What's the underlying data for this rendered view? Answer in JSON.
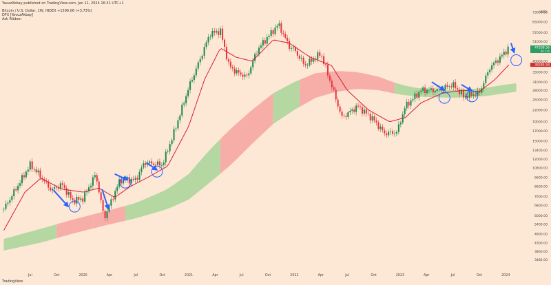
{
  "header": {
    "publish_line": "YavuzAkbay published on TradingView.com, Jan 11, 2024 16:31 UTC+1",
    "symbol_line": "Bitcoin / U.S. Dollar, 1W, INDEX  +1596.06 (+3.73%)",
    "indicator_1": "DFX [YavuzAkbay]",
    "indicator_2": "Ask Ribbon"
  },
  "currency": "USD",
  "footer_logo": "TradingView",
  "colors": {
    "background": "#fde8d6",
    "bull": "#1f8a4c",
    "bear": "#e8363c",
    "ma": "#d81b2c",
    "ribbon_green": "#a8d59a",
    "ribbon_pink": "#f7a3a0",
    "annotation": "#2962ff",
    "price_tag_bull": "#2e9b62",
    "price_tag_bear": "#d32f2f"
  },
  "price_tags": [
    {
      "label": "47338.36",
      "sub": "3d 11h",
      "price": 47338,
      "color": "#2e9b62"
    },
    {
      "label": "38285.58",
      "price": 38285,
      "color": "#d32f2f"
    }
  ],
  "chart_data": {
    "type": "line",
    "title": "Bitcoin / U.S. Dollar, 1W, INDEX",
    "y_scale": "log",
    "ylim": [
      3000,
      78000
    ],
    "y_ticks": [
      3485,
      3860,
      4300,
      4800,
      5400,
      6000,
      6800,
      7600,
      8600,
      9600,
      10800,
      12000,
      13400,
      15000,
      17000,
      19000,
      22000,
      25000,
      28000,
      31000,
      35000,
      40000,
      45000,
      51000,
      57000,
      65000,
      73000
    ],
    "y_tick_labels": [
      "3485.00",
      "3860.00",
      "4300.00",
      "4800.00",
      "5400.00",
      "6000.00",
      "6800.00",
      "7600.00",
      "8600.00",
      "9600.00",
      "10800.00",
      "12000.00",
      "13400.00",
      "15000.00",
      "17000.00",
      "19000.00",
      "22000.00",
      "25000.00",
      "28000.00",
      "31000.00",
      "35000.00",
      "40000.00",
      "45000.00",
      "51000.00",
      "57000.00",
      "65000.00",
      "73000.00"
    ],
    "x_ticks": [
      "Jul",
      "Oct",
      "2020",
      "Apr",
      "Jul",
      "Oct",
      "2021",
      "Apr",
      "Jul",
      "Oct",
      "2022",
      "Apr",
      "Jul",
      "Oct",
      "2023",
      "Apr",
      "Jul",
      "Oct",
      "2024"
    ],
    "x_tick_t": [
      2019.5,
      2019.75,
      2020.0,
      2020.25,
      2020.5,
      2020.75,
      2021.0,
      2021.25,
      2021.5,
      2021.75,
      2022.0,
      2022.25,
      2022.5,
      2022.75,
      2023.0,
      2023.25,
      2023.5,
      2023.75,
      2024.0
    ],
    "xlim": [
      2019.24,
      2024.22
    ],
    "price_path": [
      [
        2019.25,
        6500
      ],
      [
        2019.4,
        9000
      ],
      [
        2019.5,
        11200
      ],
      [
        2019.58,
        10000
      ],
      [
        2019.7,
        8200
      ],
      [
        2019.8,
        8800
      ],
      [
        2019.9,
        7200
      ],
      [
        2020.0,
        7400
      ],
      [
        2020.12,
        10000
      ],
      [
        2020.2,
        5800
      ],
      [
        2020.25,
        6800
      ],
      [
        2020.35,
        9300
      ],
      [
        2020.5,
        9300
      ],
      [
        2020.58,
        11500
      ],
      [
        2020.75,
        11200
      ],
      [
        2020.85,
        16000
      ],
      [
        2021.0,
        29000
      ],
      [
        2021.1,
        40000
      ],
      [
        2021.2,
        56000
      ],
      [
        2021.3,
        58000
      ],
      [
        2021.38,
        38000
      ],
      [
        2021.45,
        35000
      ],
      [
        2021.55,
        33000
      ],
      [
        2021.65,
        46000
      ],
      [
        2021.75,
        54000
      ],
      [
        2021.85,
        63000
      ],
      [
        2021.95,
        48000
      ],
      [
        2022.0,
        46000
      ],
      [
        2022.1,
        38000
      ],
      [
        2022.25,
        44000
      ],
      [
        2022.35,
        30000
      ],
      [
        2022.45,
        20000
      ],
      [
        2022.6,
        23000
      ],
      [
        2022.75,
        19500
      ],
      [
        2022.85,
        16500
      ],
      [
        2022.97,
        16700
      ],
      [
        2023.05,
        23000
      ],
      [
        2023.2,
        28000
      ],
      [
        2023.35,
        28000
      ],
      [
        2023.5,
        30000
      ],
      [
        2023.6,
        26000
      ],
      [
        2023.75,
        27000
      ],
      [
        2023.85,
        37000
      ],
      [
        2023.95,
        42000
      ],
      [
        2024.03,
        47338
      ]
    ],
    "ma_path": [
      [
        2019.25,
        5000
      ],
      [
        2019.45,
        8000
      ],
      [
        2019.6,
        9500
      ],
      [
        2019.8,
        8300
      ],
      [
        2020.0,
        8000
      ],
      [
        2020.15,
        8400
      ],
      [
        2020.3,
        7500
      ],
      [
        2020.45,
        8600
      ],
      [
        2020.6,
        9500
      ],
      [
        2020.8,
        11000
      ],
      [
        2021.0,
        18000
      ],
      [
        2021.15,
        32000
      ],
      [
        2021.3,
        47000
      ],
      [
        2021.45,
        42000
      ],
      [
        2021.6,
        40000
      ],
      [
        2021.8,
        52000
      ],
      [
        2021.95,
        50000
      ],
      [
        2022.15,
        42000
      ],
      [
        2022.35,
        38000
      ],
      [
        2022.5,
        28000
      ],
      [
        2022.7,
        22000
      ],
      [
        2022.9,
        19000
      ],
      [
        2023.05,
        20000
      ],
      [
        2023.2,
        24000
      ],
      [
        2023.4,
        27000
      ],
      [
        2023.6,
        28000
      ],
      [
        2023.75,
        27500
      ],
      [
        2023.9,
        32000
      ],
      [
        2024.03,
        38285
      ]
    ],
    "ribbon": {
      "upper": [
        [
          2019.25,
          4500
        ],
        [
          2019.6,
          5100
        ],
        [
          2019.9,
          5700
        ],
        [
          2020.2,
          6300
        ],
        [
          2020.5,
          7000
        ],
        [
          2020.8,
          8300
        ],
        [
          2021.0,
          10000
        ],
        [
          2021.2,
          13500
        ],
        [
          2021.4,
          17500
        ],
        [
          2021.6,
          22000
        ],
        [
          2021.8,
          27000
        ],
        [
          2022.0,
          31000
        ],
        [
          2022.2,
          34500
        ],
        [
          2022.4,
          35500
        ],
        [
          2022.6,
          35000
        ],
        [
          2022.8,
          33000
        ],
        [
          2023.0,
          30000
        ],
        [
          2023.2,
          28500
        ],
        [
          2023.5,
          28000
        ],
        [
          2023.8,
          28800
        ],
        [
          2024.0,
          30000
        ],
        [
          2024.1,
          30500
        ]
      ],
      "lower": [
        [
          2019.25,
          3900
        ],
        [
          2019.6,
          4300
        ],
        [
          2019.9,
          4800
        ],
        [
          2020.2,
          5300
        ],
        [
          2020.5,
          5800
        ],
        [
          2020.8,
          6500
        ],
        [
          2021.0,
          7300
        ],
        [
          2021.2,
          9000
        ],
        [
          2021.4,
          11200
        ],
        [
          2021.6,
          14500
        ],
        [
          2021.8,
          18500
        ],
        [
          2022.0,
          22000
        ],
        [
          2022.2,
          25500
        ],
        [
          2022.4,
          27500
        ],
        [
          2022.6,
          28500
        ],
        [
          2022.8,
          28000
        ],
        [
          2023.0,
          26500
        ],
        [
          2023.2,
          25800
        ],
        [
          2023.5,
          25500
        ],
        [
          2023.8,
          26000
        ],
        [
          2024.0,
          27000
        ],
        [
          2024.1,
          27500
        ]
      ],
      "segments": [
        {
          "from": 2019.25,
          "to": 2019.75,
          "color": "green"
        },
        {
          "from": 2019.75,
          "to": 2020.1,
          "color": "pink"
        },
        {
          "from": 2020.1,
          "to": 2020.4,
          "color": "pink"
        },
        {
          "from": 2020.4,
          "to": 2021.3,
          "color": "green"
        },
        {
          "from": 2021.3,
          "to": 2021.8,
          "color": "pink"
        },
        {
          "from": 2021.8,
          "to": 2022.05,
          "color": "green"
        },
        {
          "from": 2022.05,
          "to": 2022.95,
          "color": "pink"
        },
        {
          "from": 2022.95,
          "to": 2024.1,
          "color": "green"
        }
      ]
    },
    "annotations": {
      "circles": [
        {
          "t": 2019.92,
          "price": 6700
        },
        {
          "t": 2020.4,
          "price": 9000
        },
        {
          "t": 2020.7,
          "price": 10300
        },
        {
          "t": 2023.42,
          "price": 25500
        },
        {
          "t": 2023.68,
          "price": 26000
        },
        {
          "t": 2024.1,
          "price": 40500
        }
      ],
      "arrows": [
        {
          "t0": 2019.72,
          "p0": 8200,
          "t1": 2019.86,
          "p1": 6700
        },
        {
          "t0": 2020.18,
          "p0": 8300,
          "t1": 2020.24,
          "p1": 6500
        },
        {
          "t0": 2020.3,
          "p0": 10000,
          "t1": 2020.42,
          "p1": 9300
        },
        {
          "t0": 2020.6,
          "p0": 11500,
          "t1": 2020.7,
          "p1": 10500
        },
        {
          "t0": 2023.3,
          "p0": 31000,
          "t1": 2023.42,
          "p1": 28000
        },
        {
          "t0": 2023.58,
          "p0": 30000,
          "t1": 2023.68,
          "p1": 27800
        },
        {
          "t0": 2024.05,
          "p0": 50000,
          "t1": 2024.08,
          "p1": 44500
        }
      ]
    }
  }
}
